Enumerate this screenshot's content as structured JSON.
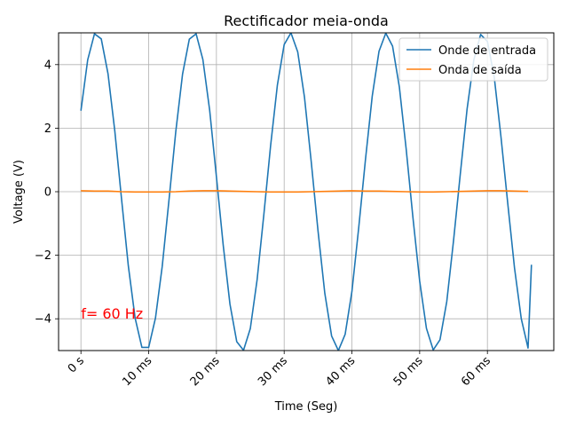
{
  "chart_data": {
    "type": "line",
    "title": "Rectificador meia-onda",
    "xlabel": "Time (Seg)",
    "ylabel": "Voltage (V)",
    "xlim": [
      -0.0033,
      0.0698
    ],
    "ylim": [
      -5,
      5
    ],
    "x_ticks": [
      0,
      0.01,
      0.02,
      0.03,
      0.04,
      0.05,
      0.06
    ],
    "x_tick_labels": [
      "0 s",
      "10 ms",
      "20 ms",
      "30 ms",
      "40 ms",
      "50 ms",
      "60 ms"
    ],
    "y_ticks": [
      -4,
      -2,
      0,
      2,
      4
    ],
    "y_tick_labels": [
      "−4",
      "−2",
      "0",
      "2",
      "4"
    ],
    "grid": true,
    "legend_position": "top-right",
    "annotation": {
      "text": "f= 60 Hz",
      "x": 0.0,
      "y": -4.0,
      "color": "#ff0000"
    },
    "series": [
      {
        "name": "Onde de entrada",
        "color": "#1f77b4",
        "x": [
          0,
          0.001,
          0.002,
          0.003,
          0.004,
          0.005,
          0.006,
          0.007,
          0.008,
          0.009,
          0.01,
          0.011,
          0.012,
          0.013,
          0.014,
          0.015,
          0.016,
          0.017,
          0.018,
          0.019,
          0.02,
          0.021,
          0.022,
          0.023,
          0.024,
          0.025,
          0.026,
          0.027,
          0.028,
          0.029,
          0.03,
          0.031,
          0.032,
          0.033,
          0.034,
          0.035,
          0.036,
          0.037,
          0.038,
          0.039,
          0.04,
          0.041,
          0.042,
          0.043,
          0.044,
          0.045,
          0.046,
          0.047,
          0.048,
          0.049,
          0.05,
          0.051,
          0.052,
          0.053,
          0.054,
          0.055,
          0.056,
          0.057,
          0.058,
          0.059,
          0.06,
          0.061,
          0.062,
          0.063,
          0.064,
          0.065,
          0.066,
          0.0665
        ],
        "y": [
          2.55,
          4.15,
          4.97,
          4.81,
          3.71,
          1.91,
          -0.24,
          -2.34,
          -3.98,
          -4.9,
          -4.9,
          -3.98,
          -2.35,
          -0.26,
          1.89,
          3.7,
          4.8,
          4.97,
          4.16,
          2.57,
          0.47,
          -1.68,
          -3.54,
          -4.72,
          -4.99,
          -4.31,
          -2.78,
          -0.72,
          1.45,
          3.36,
          4.63,
          5.0,
          4.4,
          2.97,
          0.93,
          -1.24,
          -3.2,
          -4.54,
          -5.0,
          -4.49,
          -3.14,
          -1.14,
          1.01,
          3.01,
          4.42,
          4.99,
          4.58,
          3.3,
          1.36,
          -0.8,
          -2.81,
          -4.3,
          -4.98,
          -4.66,
          -3.46,
          -1.54,
          0.56,
          2.6,
          4.15,
          4.95,
          4.73,
          3.62,
          1.73,
          -0.36,
          -2.4,
          -4.0,
          -4.92,
          -2.3
        ]
      },
      {
        "name": "Onda de saída",
        "color": "#ff7f0e",
        "x": [
          0,
          0.002,
          0.004,
          0.006,
          0.008,
          0.01,
          0.012,
          0.014,
          0.016,
          0.018,
          0.02,
          0.022,
          0.024,
          0.026,
          0.028,
          0.03,
          0.032,
          0.034,
          0.036,
          0.038,
          0.04,
          0.042,
          0.044,
          0.046,
          0.048,
          0.05,
          0.052,
          0.054,
          0.056,
          0.058,
          0.06,
          0.062,
          0.064,
          0.066
        ],
        "y": [
          0.03,
          0.02,
          0.02,
          0.0,
          -0.01,
          -0.01,
          -0.01,
          0.0,
          0.02,
          0.03,
          0.03,
          0.02,
          0.01,
          0.0,
          -0.01,
          -0.01,
          -0.01,
          0.0,
          0.01,
          0.02,
          0.03,
          0.02,
          0.02,
          0.01,
          0.0,
          -0.01,
          -0.01,
          0.0,
          0.01,
          0.02,
          0.03,
          0.03,
          0.02,
          0.01
        ]
      }
    ]
  }
}
